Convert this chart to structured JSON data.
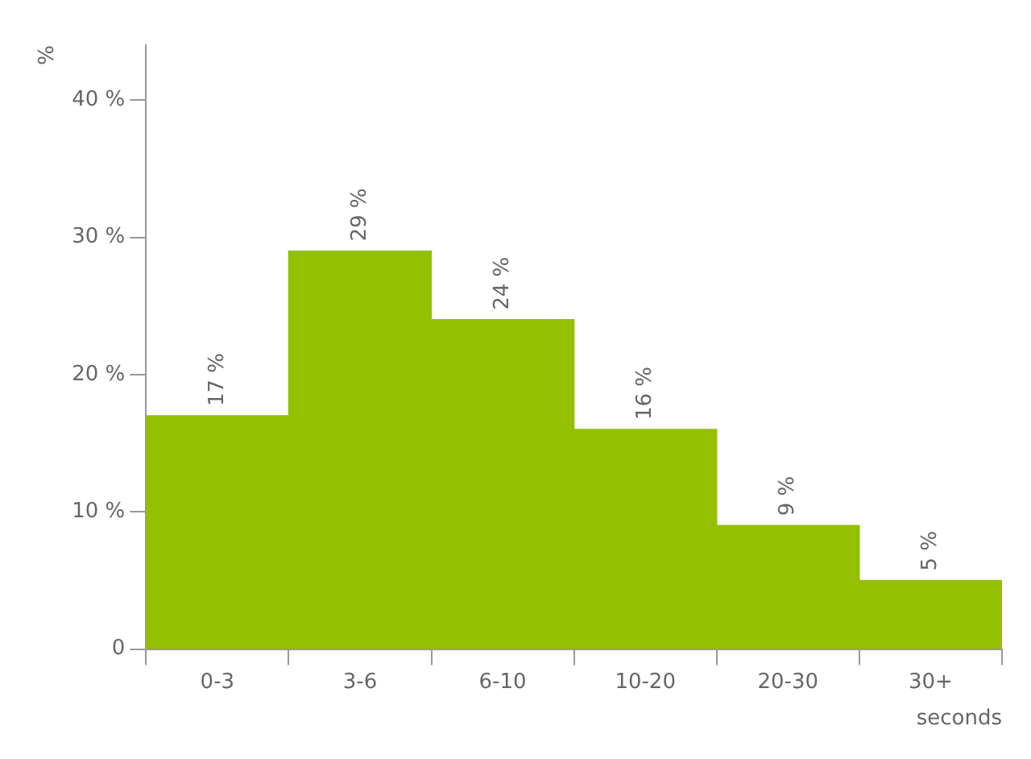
{
  "chart_data": {
    "type": "bar",
    "xlabel": "seconds",
    "ylabel": "%",
    "categories": [
      "0-3",
      "3-6",
      "6-10",
      "10-20",
      "20-30",
      "30+"
    ],
    "values": [
      17,
      29,
      24,
      16,
      9,
      5
    ],
    "value_labels": [
      "17 %",
      "29 %",
      "24 %",
      "16 %",
      "9 %",
      "5 %"
    ],
    "color": "#93c000",
    "ylim": [
      0,
      44
    ],
    "yticks": [
      {
        "value": 0,
        "label": "0"
      },
      {
        "value": 10,
        "label": "10 %"
      },
      {
        "value": 20,
        "label": "20 %"
      },
      {
        "value": 30,
        "label": "30 %"
      },
      {
        "value": 40,
        "label": "40 %"
      }
    ],
    "grid": false,
    "legend": false
  }
}
